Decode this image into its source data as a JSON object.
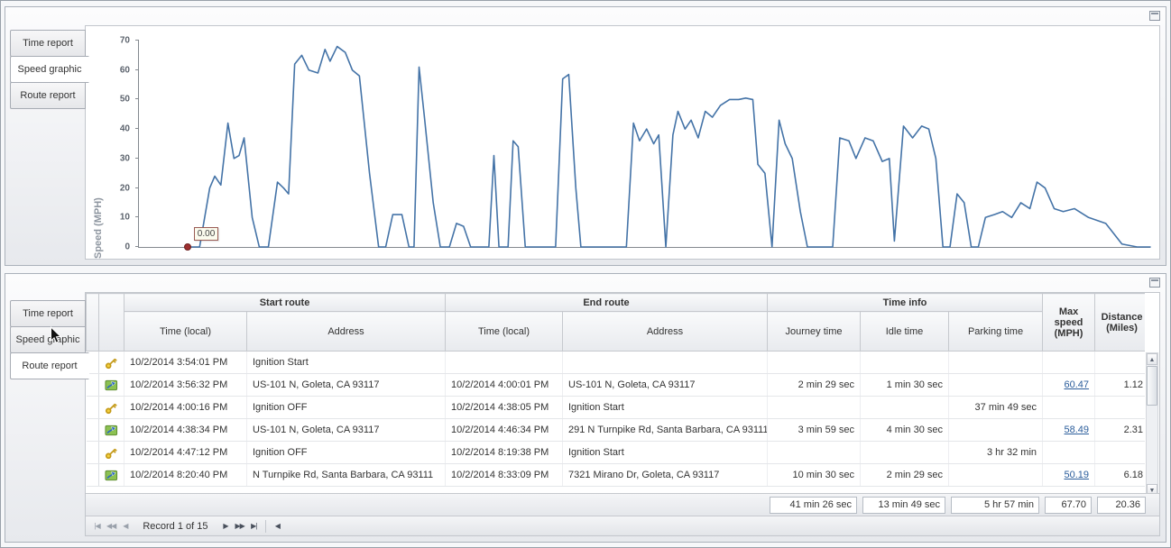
{
  "panels": {
    "top": {
      "tabs": [
        {
          "label": "Time report",
          "selected": false
        },
        {
          "label": "Speed graphic",
          "selected": true
        },
        {
          "label": "Route report",
          "selected": false
        }
      ]
    },
    "bottom": {
      "tabs": [
        {
          "label": "Time report",
          "selected": false
        },
        {
          "label": "Speed graphic",
          "selected": false
        },
        {
          "label": "Route report",
          "selected": true
        }
      ]
    }
  },
  "chart_data": {
    "type": "line",
    "title": "",
    "xlabel": "",
    "ylabel": "Speed (MPH)",
    "ylim": [
      0,
      70
    ],
    "yticks": [
      0,
      10,
      20,
      30,
      40,
      50,
      60,
      70
    ],
    "grid": false,
    "legend": false,
    "line_color": "#4473a7",
    "marker_label": "0.00",
    "marker_x_pct": 4.8,
    "points": [
      [
        4.8,
        0
      ],
      [
        6,
        0
      ],
      [
        7,
        20
      ],
      [
        7.5,
        24
      ],
      [
        8.1,
        21
      ],
      [
        8.8,
        42
      ],
      [
        9.4,
        30
      ],
      [
        9.9,
        31
      ],
      [
        10.4,
        37
      ],
      [
        11.2,
        10
      ],
      [
        11.9,
        0
      ],
      [
        12.8,
        0
      ],
      [
        13.7,
        22
      ],
      [
        14.3,
        20
      ],
      [
        14.8,
        18
      ],
      [
        15.4,
        62
      ],
      [
        16.1,
        65
      ],
      [
        16.8,
        60
      ],
      [
        17.7,
        59
      ],
      [
        18.4,
        67
      ],
      [
        18.9,
        63
      ],
      [
        19.6,
        68
      ],
      [
        20.4,
        66
      ],
      [
        21.1,
        60
      ],
      [
        21.8,
        58
      ],
      [
        22.8,
        25
      ],
      [
        23.7,
        0
      ],
      [
        24.4,
        0
      ],
      [
        25.1,
        11
      ],
      [
        26,
        11
      ],
      [
        26.7,
        0
      ],
      [
        27.2,
        0
      ],
      [
        27.7,
        61
      ],
      [
        28.2,
        45
      ],
      [
        29.1,
        15
      ],
      [
        29.8,
        0
      ],
      [
        30.7,
        0
      ],
      [
        31.4,
        8
      ],
      [
        32.1,
        7
      ],
      [
        32.8,
        0
      ],
      [
        34.6,
        0
      ],
      [
        35.1,
        31
      ],
      [
        35.6,
        0
      ],
      [
        36.5,
        0
      ],
      [
        37,
        36
      ],
      [
        37.5,
        34
      ],
      [
        38.2,
        0
      ],
      [
        41.2,
        0
      ],
      [
        41.9,
        57
      ],
      [
        42.5,
        58.5
      ],
      [
        43.2,
        20
      ],
      [
        43.7,
        0
      ],
      [
        48.2,
        0
      ],
      [
        48.9,
        42
      ],
      [
        49.5,
        36
      ],
      [
        50.2,
        40
      ],
      [
        50.9,
        35
      ],
      [
        51.4,
        38
      ],
      [
        52.1,
        0
      ],
      [
        52.8,
        38
      ],
      [
        53.3,
        46
      ],
      [
        54,
        40
      ],
      [
        54.6,
        43
      ],
      [
        55.3,
        37
      ],
      [
        56,
        46
      ],
      [
        56.7,
        44
      ],
      [
        57.5,
        48
      ],
      [
        58.4,
        50
      ],
      [
        59.3,
        50
      ],
      [
        60,
        50.5
      ],
      [
        60.7,
        50
      ],
      [
        61.2,
        28
      ],
      [
        61.9,
        25
      ],
      [
        62.6,
        0
      ],
      [
        63.3,
        43
      ],
      [
        63.9,
        35
      ],
      [
        64.6,
        30
      ],
      [
        65.4,
        12
      ],
      [
        66.1,
        0
      ],
      [
        68.6,
        0
      ],
      [
        69.3,
        37
      ],
      [
        70.2,
        36
      ],
      [
        70.9,
        30
      ],
      [
        71.8,
        37
      ],
      [
        72.6,
        36
      ],
      [
        73.5,
        29
      ],
      [
        74.2,
        30
      ],
      [
        74.7,
        2
      ],
      [
        75.6,
        41
      ],
      [
        76.5,
        37
      ],
      [
        77.4,
        41
      ],
      [
        78.1,
        40
      ],
      [
        78.8,
        30
      ],
      [
        79.5,
        0
      ],
      [
        80.2,
        0
      ],
      [
        80.9,
        18
      ],
      [
        81.6,
        15
      ],
      [
        82.3,
        0
      ],
      [
        83,
        0
      ],
      [
        83.7,
        10
      ],
      [
        84.6,
        11
      ],
      [
        85.4,
        12
      ],
      [
        86.3,
        10
      ],
      [
        87.2,
        15
      ],
      [
        88.1,
        13
      ],
      [
        88.8,
        22
      ],
      [
        89.6,
        20
      ],
      [
        90.5,
        13
      ],
      [
        91.4,
        12
      ],
      [
        92.5,
        13
      ],
      [
        93.9,
        10
      ],
      [
        95.6,
        8
      ],
      [
        97.2,
        1
      ],
      [
        98.7,
        0
      ],
      [
        100,
        0
      ]
    ]
  },
  "table": {
    "group_headers": [
      "Start route",
      "End route",
      "Time info"
    ],
    "columns": [
      "Time (local)",
      "Address",
      "Time (local)",
      "Address",
      "Journey time",
      "Idle time",
      "Parking time",
      "Max speed (MPH)",
      "Distance (Miles)"
    ],
    "rows": [
      {
        "icon": "key",
        "start_time": "10/2/2014 3:54:01 PM",
        "start_address": "Ignition Start",
        "end_time": "",
        "end_address": "",
        "journey_time": "",
        "idle_time": "",
        "parking_time": "",
        "max_speed": "",
        "distance": ""
      },
      {
        "icon": "route",
        "start_time": "10/2/2014 3:56:32 PM",
        "start_address": "US-101 N, Goleta, CA 93117",
        "end_time": "10/2/2014 4:00:01 PM",
        "end_address": "US-101 N, Goleta, CA 93117",
        "journey_time": "2 min 29 sec",
        "idle_time": "1 min 30 sec",
        "parking_time": "",
        "max_speed": "60.47",
        "distance": "1.12"
      },
      {
        "icon": "key",
        "start_time": "10/2/2014 4:00:16 PM",
        "start_address": "Ignition OFF",
        "end_time": "10/2/2014 4:38:05 PM",
        "end_address": "Ignition Start",
        "journey_time": "",
        "idle_time": "",
        "parking_time": "37 min 49 sec",
        "max_speed": "",
        "distance": ""
      },
      {
        "icon": "route",
        "start_time": "10/2/2014 4:38:34 PM",
        "start_address": "US-101 N, Goleta, CA 93117",
        "end_time": "10/2/2014 4:46:34 PM",
        "end_address": "291 N Turnpike Rd, Santa Barbara, CA 93111",
        "journey_time": "3 min 59 sec",
        "idle_time": "4 min 30 sec",
        "parking_time": "",
        "max_speed": "58.49",
        "distance": "2.31"
      },
      {
        "icon": "key",
        "start_time": "10/2/2014 4:47:12 PM",
        "start_address": "Ignition OFF",
        "end_time": "10/2/2014 8:19:38 PM",
        "end_address": "Ignition Start",
        "journey_time": "",
        "idle_time": "",
        "parking_time": "3 hr 32 min",
        "max_speed": "",
        "distance": ""
      },
      {
        "icon": "route",
        "start_time": "10/2/2014 8:20:40 PM",
        "start_address": "N Turnpike Rd, Santa Barbara, CA 93111",
        "end_time": "10/2/2014 8:33:09 PM",
        "end_address": "7321 Mirano Dr, Goleta, CA 93117",
        "journey_time": "10 min 30 sec",
        "idle_time": "2 min 29 sec",
        "parking_time": "",
        "max_speed": "50.19",
        "distance": "6.18"
      }
    ],
    "summary": {
      "journey_time": "41 min 26 sec",
      "idle_time": "13 min 49 sec",
      "parking_time": "5 hr 57 min",
      "max_speed": "67.70",
      "distance": "20.36"
    },
    "pager_label": "Record 1 of 15"
  },
  "icons": {
    "first": "|◀",
    "prev_page": "◀◀",
    "prev": "◀",
    "next": "▶",
    "next_page": "▶▶",
    "last": "▶|",
    "scroll_up": "▲",
    "scroll_down": "▼",
    "scroll_left": "◀"
  }
}
